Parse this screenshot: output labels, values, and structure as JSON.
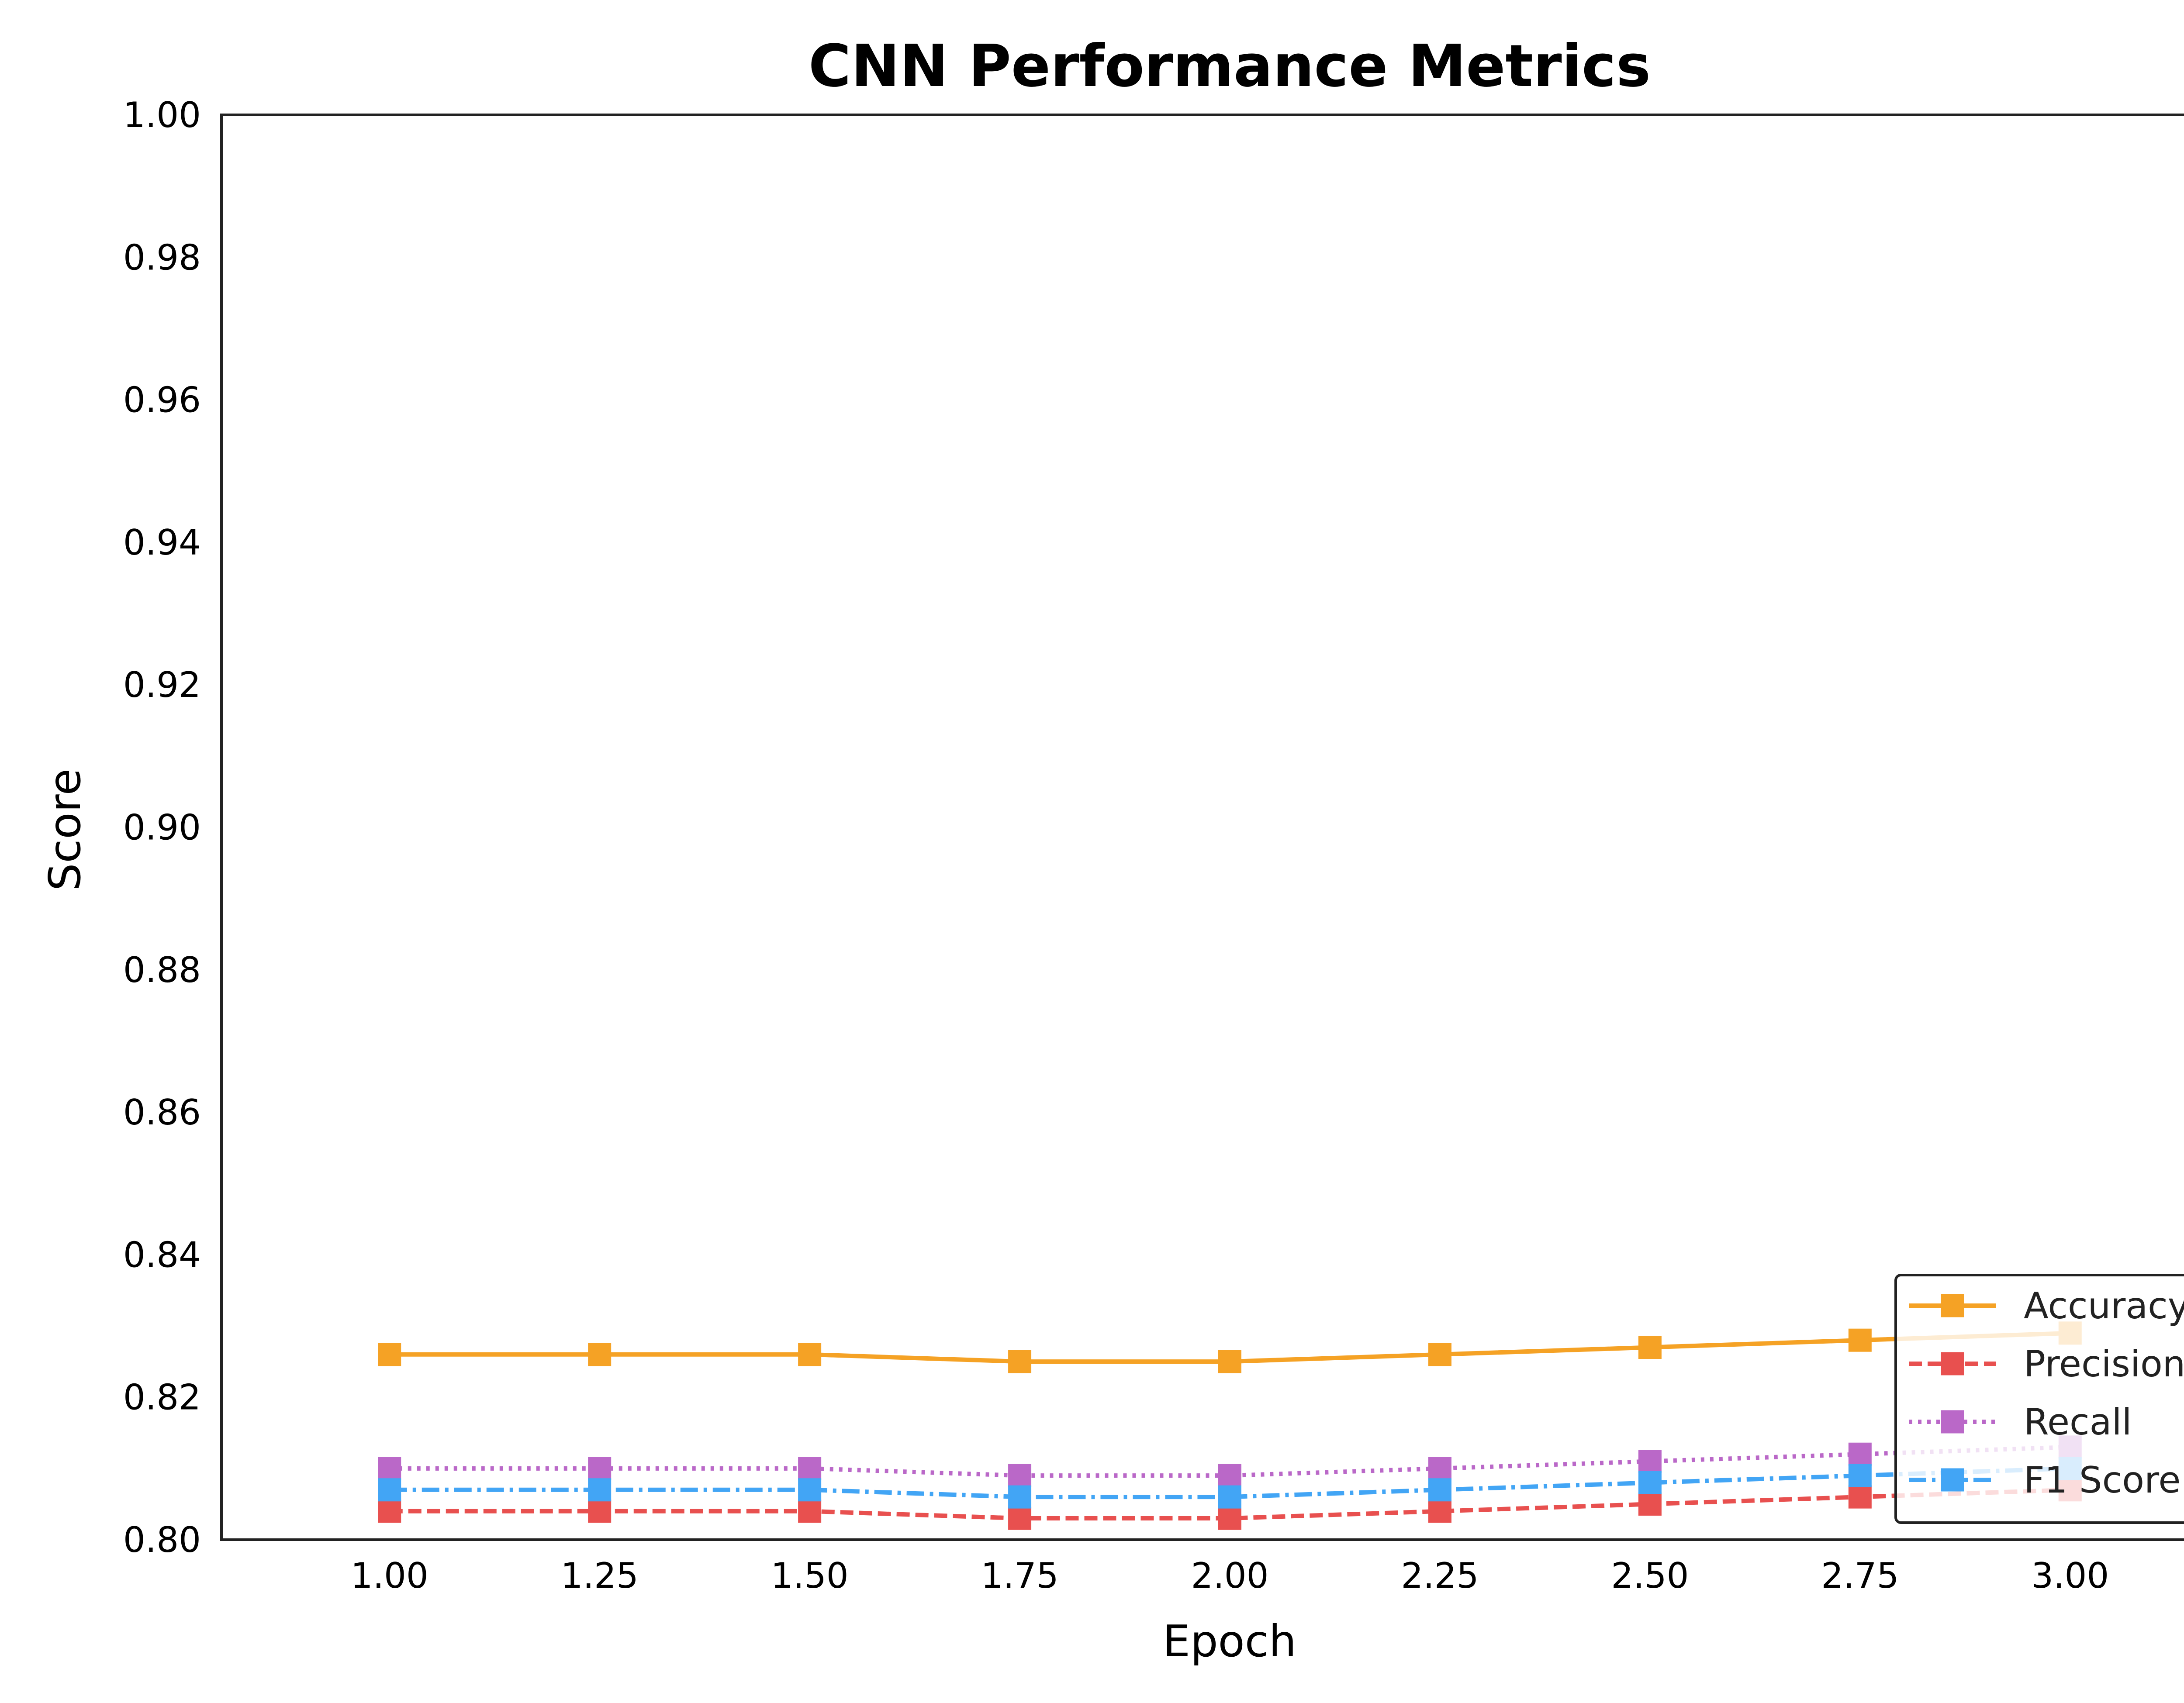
{
  "chart_data": {
    "type": "line",
    "title": "CNN Performance Metrics",
    "xlabel": "Epoch",
    "ylabel": "Score",
    "xlim": [
      0.8,
      3.2
    ],
    "ylim": [
      0.8,
      1.0
    ],
    "xticks": [
      "1.00",
      "1.25",
      "1.50",
      "1.75",
      "2.00",
      "2.25",
      "2.50",
      "2.75",
      "3.00"
    ],
    "yticks": [
      "0.80",
      "0.82",
      "0.84",
      "0.86",
      "0.88",
      "0.90",
      "0.92",
      "0.94",
      "0.96",
      "0.98",
      "1.00"
    ],
    "grid": false,
    "legend_position": "lower-right",
    "x": [
      1.0,
      1.25,
      1.5,
      1.75,
      2.0,
      2.25,
      2.5,
      2.75,
      3.0
    ],
    "series": [
      {
        "name": "Accuracy",
        "color": "#F5A225",
        "line_style": "solid",
        "marker": "square",
        "values": [
          0.826,
          0.826,
          0.826,
          0.825,
          0.825,
          0.826,
          0.827,
          0.828,
          0.829
        ]
      },
      {
        "name": "Precision",
        "color": "#E8504F",
        "line_style": "dashed",
        "marker": "square",
        "values": [
          0.804,
          0.804,
          0.804,
          0.803,
          0.803,
          0.804,
          0.805,
          0.806,
          0.807
        ]
      },
      {
        "name": "Recall",
        "color": "#BA68C8",
        "line_style": "dotted",
        "marker": "square",
        "values": [
          0.81,
          0.81,
          0.81,
          0.809,
          0.809,
          0.81,
          0.811,
          0.812,
          0.813
        ]
      },
      {
        "name": "F1 Score",
        "color": "#42A5F5",
        "line_style": "dashdot",
        "marker": "square",
        "values": [
          0.807,
          0.807,
          0.807,
          0.806,
          0.806,
          0.807,
          0.808,
          0.809,
          0.81
        ]
      }
    ]
  }
}
